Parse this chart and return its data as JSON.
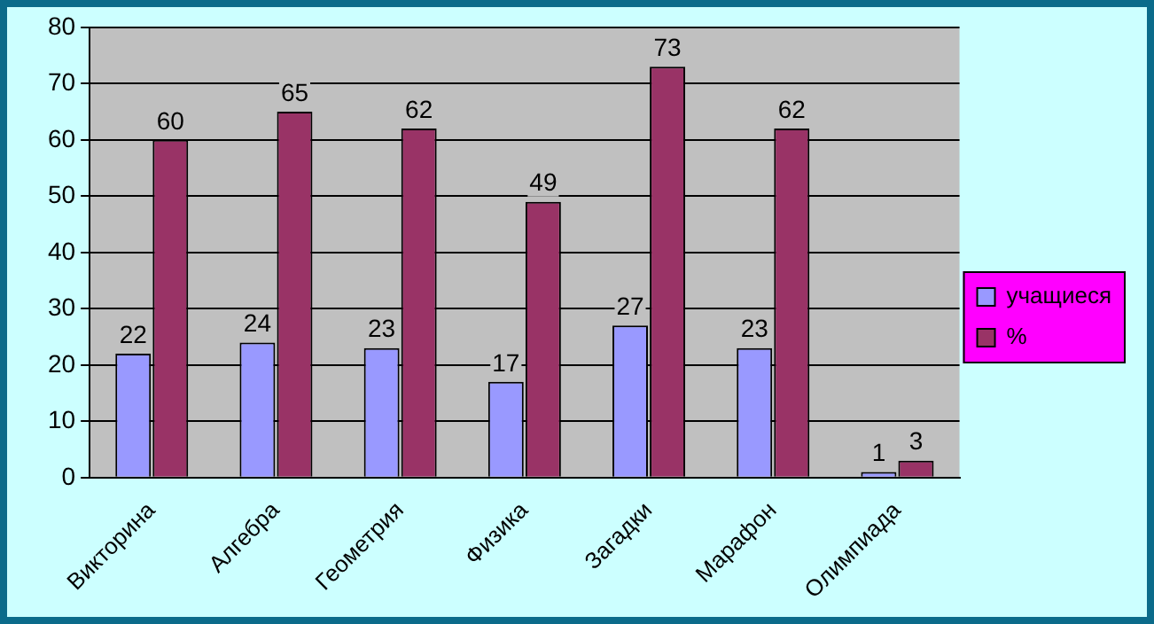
{
  "chart_data": {
    "type": "bar",
    "categories": [
      "Викторина",
      "Алгебра",
      "Геометрия",
      "Физика",
      "Загадки",
      "Марафон",
      "Олимпиада"
    ],
    "series": [
      {
        "name": "учащиеся",
        "color": "#9999ff",
        "values": [
          22,
          24,
          23,
          17,
          27,
          23,
          1
        ]
      },
      {
        "name": "%",
        "color": "#993366",
        "values": [
          60,
          65,
          62,
          49,
          73,
          62,
          3
        ]
      }
    ],
    "ylim": [
      0,
      80
    ],
    "yticks": [
      0,
      10,
      20,
      30,
      40,
      50,
      60,
      70,
      80
    ],
    "grid": "y",
    "legend": "right",
    "data_labels": true
  }
}
